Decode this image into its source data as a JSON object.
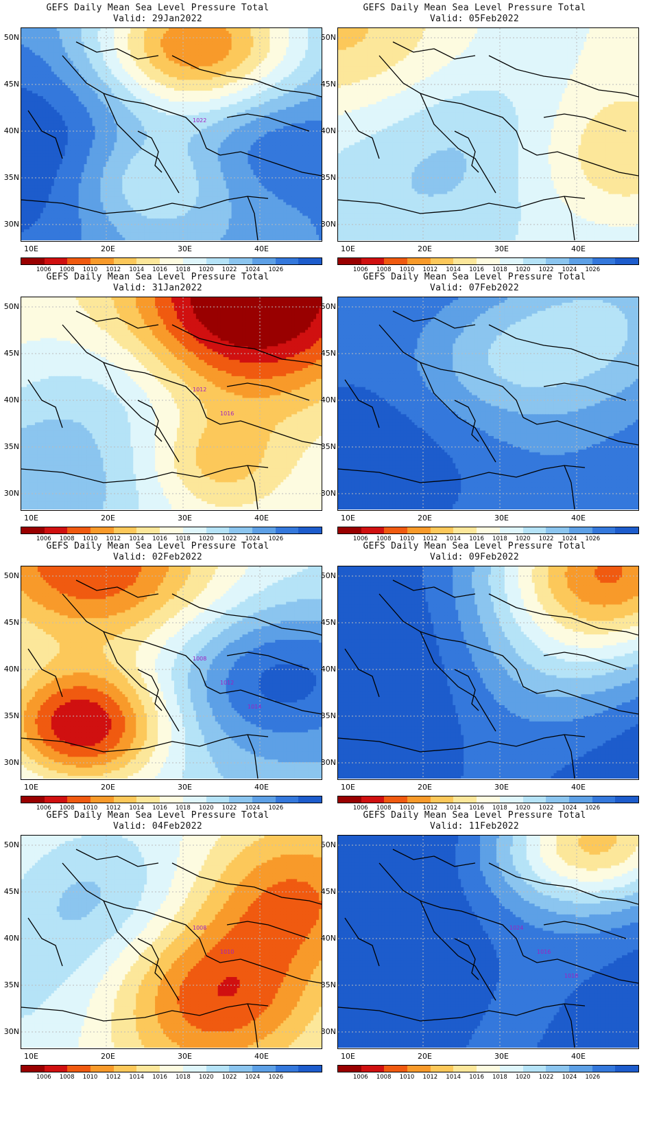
{
  "colorbar": {
    "colors": [
      "#990000",
      "#d01010",
      "#f05a10",
      "#f89a2a",
      "#fcc85a",
      "#fce79a",
      "#fdfbe0",
      "#dff6fb",
      "#b5e3f7",
      "#8bc5ef",
      "#5da0e6",
      "#3478dc",
      "#1d5ccc"
    ],
    "labels": [
      "1006",
      "1008",
      "1010",
      "1012",
      "1014",
      "1016",
      "1018",
      "1020",
      "1022",
      "1024",
      "1026"
    ]
  },
  "axes": {
    "lat_labels": [
      "50N",
      "45N",
      "40N",
      "35N",
      "30N"
    ],
    "lon_labels": [
      "10E",
      "20E",
      "30E",
      "40E"
    ]
  },
  "panels": [
    {
      "title": "GEFS Daily Mean Sea Level Pressure Total",
      "valid": "Valid: 29Jan2022",
      "contour_labels": [
        "1022"
      ],
      "field": {
        "base": 10,
        "blobs": [
          [
            0.55,
            0.08,
            -8,
            0.25
          ],
          [
            0.42,
            0.72,
            -3,
            0.18
          ],
          [
            0.82,
            0.52,
            2,
            0.2
          ],
          [
            0.05,
            0.5,
            2,
            0.4
          ]
        ]
      }
    },
    {
      "title": "GEFS Daily Mean Sea Level Pressure Total",
      "valid": "Valid: 05Feb2022",
      "contour_labels": [],
      "field": {
        "base": 7,
        "blobs": [
          [
            0.1,
            0.05,
            -3,
            0.3
          ],
          [
            0.55,
            0.5,
            2,
            0.3
          ],
          [
            0.95,
            0.6,
            -3,
            0.25
          ],
          [
            0.45,
            0.95,
            1,
            0.3
          ]
        ]
      }
    },
    {
      "title": "GEFS Daily Mean Sea Level Pressure Total",
      "valid": "Valid: 31Jan2022",
      "contour_labels": [
        "1012",
        "1016"
      ],
      "field": {
        "base": 6,
        "blobs": [
          [
            0.75,
            0.0,
            -7,
            0.3
          ],
          [
            0.1,
            0.95,
            3,
            0.35
          ],
          [
            0.65,
            0.78,
            -2,
            0.15
          ],
          [
            0.35,
            0.4,
            1,
            0.2
          ]
        ]
      }
    },
    {
      "title": "GEFS Daily Mean Sea Level Pressure Total",
      "valid": "Valid: 07Feb2022",
      "contour_labels": [],
      "field": {
        "base": 11,
        "blobs": [
          [
            0.5,
            0.3,
            -2,
            0.22
          ],
          [
            0.85,
            0.15,
            -2,
            0.25
          ],
          [
            0.3,
            0.9,
            1,
            0.3
          ]
        ]
      }
    },
    {
      "title": "GEFS Daily Mean Sea Level Pressure Total",
      "valid": "Valid: 02Feb2022",
      "contour_labels": [
        "1008",
        "1012",
        "1014"
      ],
      "field": {
        "base": 8,
        "blobs": [
          [
            0.25,
            0.0,
            -7,
            0.3
          ],
          [
            0.2,
            0.75,
            -8,
            0.2
          ],
          [
            0.85,
            0.5,
            4,
            0.25
          ],
          [
            0.6,
            0.8,
            1,
            0.3
          ]
        ]
      }
    },
    {
      "title": "GEFS Daily Mean Sea Level Pressure Total",
      "valid": "Valid: 09Feb2022",
      "contour_labels": [],
      "field": {
        "base": 12,
        "blobs": [
          [
            0.9,
            0.02,
            -9,
            0.3
          ],
          [
            0.7,
            0.5,
            -1,
            0.2
          ]
        ]
      }
    },
    {
      "title": "GEFS Daily Mean Sea Level Pressure Total",
      "valid": "Valid: 04Feb2022",
      "contour_labels": [
        "1008",
        "1010"
      ],
      "field": {
        "base": 6,
        "blobs": [
          [
            0.65,
            0.75,
            -4,
            0.25
          ],
          [
            0.92,
            0.3,
            -3,
            0.22
          ],
          [
            0.25,
            0.3,
            2,
            0.25
          ],
          [
            0.1,
            0.8,
            1,
            0.3
          ]
        ]
      }
    },
    {
      "title": "GEFS Daily Mean Sea Level Pressure Total",
      "valid": "Valid: 11Feb2022",
      "contour_labels": [
        "1024",
        "1016",
        "1018"
      ],
      "field": {
        "base": 12,
        "blobs": [
          [
            0.9,
            0.0,
            -6,
            0.22
          ],
          [
            0.7,
            0.1,
            -2,
            0.2
          ]
        ]
      }
    }
  ]
}
